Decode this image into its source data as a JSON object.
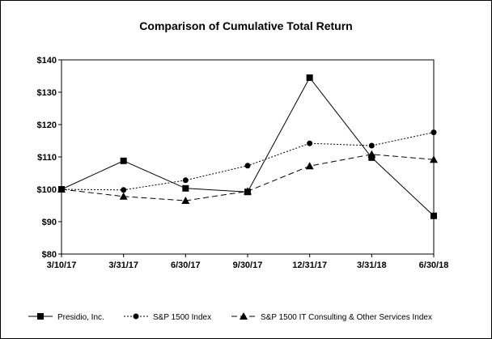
{
  "chart_data": {
    "type": "line",
    "title": "Comparison of Cumulative Total Return",
    "x": [
      "3/10/17",
      "3/31/17",
      "6/30/17",
      "9/30/17",
      "12/31/17",
      "3/31/18",
      "6/30/18"
    ],
    "yticks": [
      "$80",
      "$90",
      "$100",
      "$110",
      "$120",
      "$130",
      "$140"
    ],
    "ylim": [
      80,
      140
    ],
    "grid": false,
    "legend_position": "bottom",
    "series": [
      {
        "name": "Presidio, Inc.",
        "values": [
          100,
          108.8,
          100.3,
          99.2,
          134.5,
          109.8,
          91.8
        ],
        "line": "solid",
        "marker": "square",
        "color": "#000000"
      },
      {
        "name": "S&P 1500 Index",
        "values": [
          100,
          99.8,
          102.8,
          107.3,
          114.2,
          113.5,
          117.6
        ],
        "line": "dotted",
        "marker": "circle",
        "color": "#000000"
      },
      {
        "name": "S&P 1500 IT Consulting & Other Services Index",
        "values": [
          100,
          97.8,
          96.5,
          99.4,
          107.2,
          110.8,
          109.2
        ],
        "line": "dashed",
        "marker": "triangle",
        "color": "#000000"
      }
    ]
  }
}
